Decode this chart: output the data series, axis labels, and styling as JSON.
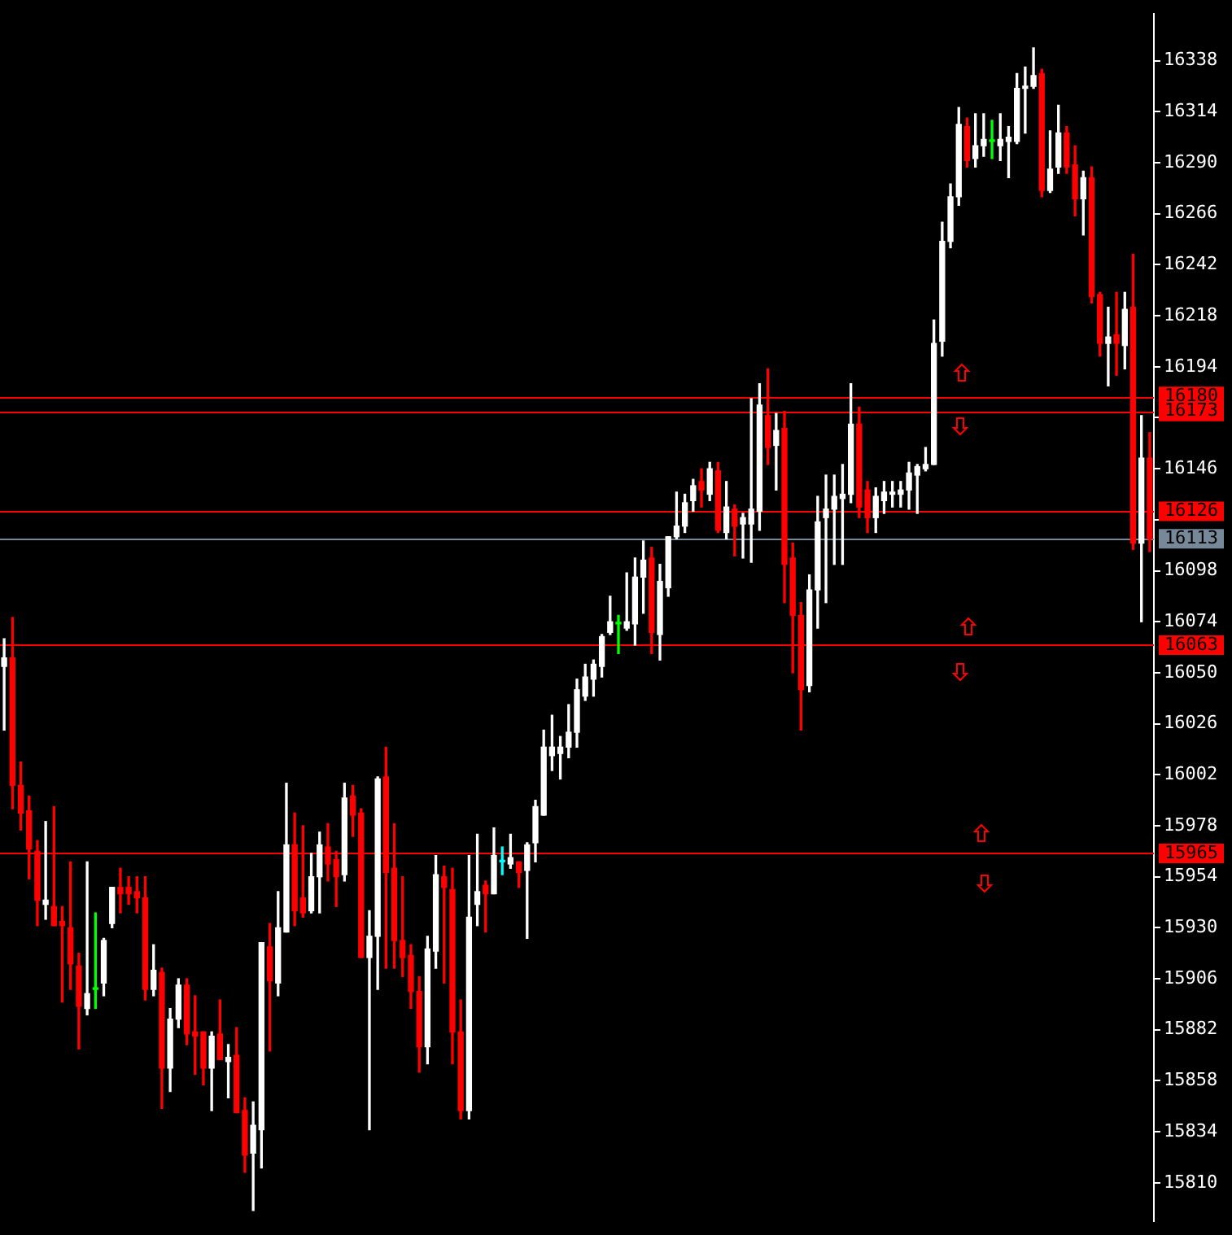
{
  "chart_data": {
    "type": "candlestick",
    "categories": [
      null,
      null,
      null,
      null,
      null,
      null,
      null,
      null,
      null,
      null,
      null,
      null,
      null,
      null,
      null,
      null,
      null,
      null,
      null,
      null,
      null,
      null,
      null,
      null,
      null,
      null,
      null,
      null,
      null,
      null,
      null,
      null,
      null,
      null,
      null,
      null,
      null,
      null,
      null,
      null,
      null,
      null,
      null,
      null,
      null,
      null,
      null,
      null,
      null,
      null,
      null,
      null,
      null,
      null,
      null,
      null,
      null,
      null,
      null,
      null,
      null,
      null,
      null,
      null,
      null,
      null,
      null,
      null,
      null,
      null,
      null,
      null,
      null,
      null,
      null,
      null,
      null,
      null,
      null,
      null,
      null,
      null,
      null,
      null,
      null,
      null,
      null,
      null,
      null,
      null,
      null,
      null,
      null,
      null,
      null,
      null,
      null,
      null,
      null,
      null,
      null,
      null,
      null,
      null,
      null,
      null,
      null,
      null,
      null,
      null,
      null,
      null,
      null,
      null,
      null,
      null,
      null,
      null,
      null,
      null,
      null,
      null,
      null,
      null,
      null,
      null,
      null,
      null,
      null,
      null,
      null,
      null,
      null,
      null,
      null,
      null,
      null,
      null,
      null
    ],
    "ohlc": [
      [
        16053,
        16066,
        16023,
        16057
      ],
      [
        16057,
        16076,
        15986,
        15997
      ],
      [
        15997,
        16008,
        15976,
        15984
      ],
      [
        15985,
        15992,
        15953,
        15967
      ],
      [
        15966,
        15971,
        15931,
        15943
      ],
      [
        15941,
        15980,
        15934,
        15943
      ],
      [
        15940,
        15987,
        15931,
        15931
      ],
      [
        15933,
        15940,
        15895,
        15931
      ],
      [
        15930,
        15961,
        15901,
        15913
      ],
      [
        15912,
        15918,
        15873,
        15893
      ],
      [
        15892,
        15961,
        15889,
        15899
      ],
      [
        15901,
        15937,
        15892,
        15901
      ],
      [
        15904,
        15925,
        15898,
        15924
      ],
      [
        15932,
        15949,
        15930,
        15949
      ],
      [
        15949,
        15958,
        15937,
        15946
      ],
      [
        15949,
        15954,
        15941,
        15946
      ],
      [
        15947,
        15954,
        15937,
        15944
      ],
      [
        15944,
        15954,
        15896,
        15901
      ],
      [
        15901,
        15922,
        15898,
        15910
      ],
      [
        15909,
        15911,
        15845,
        15864
      ],
      [
        15864,
        15892,
        15853,
        15887
      ],
      [
        15887,
        15906,
        15883,
        15903
      ],
      [
        15903,
        15906,
        15875,
        15880
      ],
      [
        15881,
        15898,
        15861,
        15879
      ],
      [
        15881,
        15881,
        15856,
        15864
      ],
      [
        15864,
        15881,
        15844,
        15879
      ],
      [
        15880,
        15896,
        15868,
        15868
      ],
      [
        15867,
        15875,
        15850,
        15869
      ],
      [
        15870,
        15883,
        15843,
        15843
      ],
      [
        15844,
        15850,
        15815,
        15823
      ],
      [
        15824,
        15848,
        15797,
        15837
      ],
      [
        15835,
        15923,
        15817,
        15923
      ],
      [
        15921,
        15932,
        15872,
        15905
      ],
      [
        15904,
        15947,
        15898,
        15930
      ],
      [
        15928,
        15998,
        15928,
        15969
      ],
      [
        15969,
        15984,
        15931,
        15938
      ],
      [
        15944,
        15978,
        15935,
        15937
      ],
      [
        15938,
        15965,
        15937,
        15954
      ],
      [
        15954,
        15975,
        15937,
        15969
      ],
      [
        15968,
        15979,
        15952,
        15960
      ],
      [
        15962,
        15966,
        15940,
        15954
      ],
      [
        15955,
        15998,
        15952,
        15991
      ],
      [
        15992,
        15997,
        15973,
        15983
      ],
      [
        15984,
        15986,
        15916,
        15916
      ],
      [
        15916,
        15938,
        15835,
        15926
      ],
      [
        15926,
        16001,
        15901,
        16000
      ],
      [
        16001,
        16015,
        15911,
        15956
      ],
      [
        15958,
        15979,
        15911,
        15924
      ],
      [
        15924,
        15954,
        15907,
        15916
      ],
      [
        15917,
        15922,
        15892,
        15900
      ],
      [
        15900,
        15907,
        15862,
        15874
      ],
      [
        15874,
        15926,
        15866,
        15920
      ],
      [
        15919,
        15964,
        15911,
        15955
      ],
      [
        15954,
        15959,
        15904,
        15949
      ],
      [
        15948,
        15958,
        15866,
        15881
      ],
      [
        15881,
        15896,
        15840,
        15844
      ],
      [
        15844,
        15964,
        15840,
        15935
      ],
      [
        15941,
        15974,
        15931,
        15947
      ],
      [
        15950,
        15952,
        15928,
        15946
      ],
      [
        15946,
        15977,
        15946,
        15964
      ],
      [
        15961,
        15968,
        15955,
        15961
      ],
      [
        15960,
        15974,
        15958,
        15963
      ],
      [
        15961,
        15961,
        15949,
        15956
      ],
      [
        15957,
        15970,
        15925,
        15969
      ],
      [
        15970,
        15990,
        15961,
        15987
      ],
      [
        15983,
        16023,
        15983,
        16015
      ],
      [
        16011,
        16030,
        16004,
        16015
      ],
      [
        16012,
        16020,
        16000,
        16015
      ],
      [
        16015,
        16035,
        16010,
        16022
      ],
      [
        16022,
        16047,
        16015,
        16042
      ],
      [
        16039,
        16054,
        16037,
        16048
      ],
      [
        16047,
        16056,
        16039,
        16054
      ],
      [
        16053,
        16068,
        16048,
        16067
      ],
      [
        16069,
        16086,
        16068,
        16074
      ],
      [
        16073,
        16077,
        16059,
        16073
      ],
      [
        16071,
        16097,
        16070,
        16074
      ],
      [
        16073,
        16104,
        16063,
        16095
      ],
      [
        16095,
        16112,
        16078,
        16103
      ],
      [
        16104,
        16109,
        16059,
        16069
      ],
      [
        16068,
        16101,
        16056,
        16093
      ],
      [
        16090,
        16114,
        16086,
        16114
      ],
      [
        16114,
        16135,
        16113,
        16119
      ],
      [
        16119,
        16134,
        16116,
        16130
      ],
      [
        16131,
        16141,
        16126,
        16138
      ],
      [
        16140,
        16146,
        16128,
        16136
      ],
      [
        16134,
        16149,
        16131,
        16146
      ],
      [
        16145,
        16149,
        16116,
        16117
      ],
      [
        16116,
        16140,
        16113,
        16128
      ],
      [
        16127,
        16129,
        16105,
        16119
      ],
      [
        16120,
        16125,
        16104,
        16123
      ],
      [
        16120,
        16179,
        16102,
        16127
      ],
      [
        16126,
        16186,
        16117,
        16176
      ],
      [
        16171,
        16193,
        16148,
        16156
      ],
      [
        16157,
        16172,
        16136,
        16164
      ],
      [
        16165,
        16173,
        16083,
        16101
      ],
      [
        16104,
        16111,
        16050,
        16077
      ],
      [
        16077,
        16083,
        16023,
        16042
      ],
      [
        16044,
        16096,
        16041,
        16089
      ],
      [
        16089,
        16133,
        16071,
        16121
      ],
      [
        16123,
        16143,
        16083,
        16127
      ],
      [
        16127,
        16143,
        16101,
        16133
      ],
      [
        16132,
        16148,
        16101,
        16134
      ],
      [
        16134,
        16186,
        16130,
        16167
      ],
      [
        16167,
        16175,
        16123,
        16128
      ],
      [
        16136,
        16140,
        16116,
        16123
      ],
      [
        16123,
        16137,
        16116,
        16133
      ],
      [
        16131,
        16140,
        16125,
        16135
      ],
      [
        16134,
        16140,
        16128,
        16135
      ],
      [
        16134,
        16140,
        16128,
        16136
      ],
      [
        16136,
        16149,
        16127,
        16144
      ],
      [
        16143,
        16148,
        16125,
        16147
      ],
      [
        16146,
        16156,
        16145,
        16148
      ],
      [
        16148,
        16216,
        16148,
        16205
      ],
      [
        16206,
        16262,
        16199,
        16253
      ],
      [
        16253,
        16280,
        16250,
        16274
      ],
      [
        16274,
        16316,
        16270,
        16308
      ],
      [
        16307,
        16311,
        16288,
        16291
      ],
      [
        16292,
        16313,
        16288,
        16298
      ],
      [
        16298,
        16313,
        16293,
        16301
      ],
      [
        16300,
        16310,
        16292,
        16300
      ],
      [
        16298,
        16313,
        16291,
        16301
      ],
      [
        16300,
        16307,
        16283,
        16302
      ],
      [
        16300,
        16332,
        16299,
        16325
      ],
      [
        16325,
        16335,
        16304,
        16326
      ],
      [
        16326,
        16344,
        16325,
        16331
      ],
      [
        16332,
        16334,
        16274,
        16277
      ],
      [
        16277,
        16305,
        16276,
        16287
      ],
      [
        16288,
        16317,
        16285,
        16304
      ],
      [
        16304,
        16307,
        16285,
        16288
      ],
      [
        16289,
        16298,
        16265,
        16273
      ],
      [
        16273,
        16286,
        16256,
        16283
      ],
      [
        16283,
        16288,
        16224,
        16227
      ],
      [
        16228,
        16229,
        16199,
        16205
      ],
      [
        16205,
        16222,
        16185,
        16208
      ],
      [
        16209,
        16229,
        16190,
        16205
      ],
      [
        16204,
        16229,
        16193,
        16221
      ],
      [
        16222,
        16247,
        16108,
        16111
      ],
      [
        16111,
        16171,
        16074,
        16151
      ],
      [
        16151,
        16163,
        16107,
        16113
      ]
    ],
    "colors": [
      "#ffffff",
      "#ff0000",
      "#ff0000",
      "#ff0000",
      "#ff0000",
      "#ffffff",
      "#ff0000",
      "#ff0000",
      "#ff0000",
      "#ff0000",
      "#ffffff",
      "#00ff00",
      "#ffffff",
      "#ffffff",
      "#ff0000",
      "#ff0000",
      "#ff0000",
      "#ff0000",
      "#ffffff",
      "#ff0000",
      "#ffffff",
      "#ffffff",
      "#ff0000",
      "#ff0000",
      "#ff0000",
      "#ffffff",
      "#ff0000",
      "#ffffff",
      "#ff0000",
      "#ff0000",
      "#ffffff",
      "#ffffff",
      "#ff0000",
      "#ffffff",
      "#ffffff",
      "#ff0000",
      "#ff0000",
      "#ffffff",
      "#ffffff",
      "#ff0000",
      "#ff0000",
      "#ffffff",
      "#ff0000",
      "#ff0000",
      "#ffffff",
      "#ffffff",
      "#ff0000",
      "#ff0000",
      "#ff0000",
      "#ff0000",
      "#ff0000",
      "#ffffff",
      "#ffffff",
      "#ff0000",
      "#ff0000",
      "#ff0000",
      "#ffffff",
      "#ffffff",
      "#ff0000",
      "#ffffff",
      "#00ffff",
      "#ffffff",
      "#ff0000",
      "#ffffff",
      "#ffffff",
      "#ffffff",
      "#ffffff",
      "#ffffff",
      "#ffffff",
      "#ffffff",
      "#ffffff",
      "#ffffff",
      "#ffffff",
      "#ffffff",
      "#00ff00",
      "#ffffff",
      "#ffffff",
      "#ffffff",
      "#ff0000",
      "#ffffff",
      "#ffffff",
      "#ffffff",
      "#ffffff",
      "#ffffff",
      "#ff0000",
      "#ffffff",
      "#ff0000",
      "#ffffff",
      "#ff0000",
      "#ffffff",
      "#ffffff",
      "#ffffff",
      "#ff0000",
      "#ffffff",
      "#ff0000",
      "#ff0000",
      "#ff0000",
      "#ffffff",
      "#ffffff",
      "#ffffff",
      "#ffffff",
      "#ffffff",
      "#ffffff",
      "#ff0000",
      "#ff0000",
      "#ffffff",
      "#ffffff",
      "#ffffff",
      "#ffffff",
      "#ffffff",
      "#ffffff",
      "#ffffff",
      "#ffffff",
      "#ffffff",
      "#ffffff",
      "#ffffff",
      "#ff0000",
      "#ffffff",
      "#ffffff",
      "#00ff00",
      "#ffffff",
      "#ffffff",
      "#ffffff",
      "#ffffff",
      "#ffffff",
      "#ff0000",
      "#ffffff",
      "#ffffff",
      "#ff0000",
      "#ff0000",
      "#ffffff",
      "#ff0000",
      "#ff0000",
      "#ffffff",
      "#ff0000",
      "#ffffff",
      "#ff0000",
      "#ffffff",
      "#ff0000"
    ],
    "ylim": [
      15792,
      16360
    ],
    "yticks": [
      15810,
      15834,
      15858,
      15882,
      15906,
      15930,
      15954,
      15978,
      16002,
      16026,
      16050,
      16074,
      16098,
      {
        "value": 16122,
        "label": null
      },
      16146,
      {
        "value": 16170,
        "label": null
      },
      16194,
      16218,
      16242,
      16266,
      16290,
      16314,
      16338
    ],
    "tick_labels": "y",
    "grid": false,
    "ref_lines": [
      {
        "axis": "y",
        "value": 16180,
        "label": "16180",
        "color": "#ff0000"
      },
      {
        "axis": "y",
        "value": 16173,
        "label": "16173",
        "color": "#ff0000"
      },
      {
        "axis": "y",
        "value": 16126,
        "label": "16126",
        "color": "#ff0000"
      },
      {
        "axis": "y",
        "value": 16113,
        "label": "16113",
        "color": "#778899"
      },
      {
        "axis": "y",
        "value": 16063,
        "label": "16063",
        "color": "#ff0000"
      },
      {
        "axis": "y",
        "value": 15965,
        "label": "15965",
        "color": "#ff0000"
      }
    ]
  }
}
